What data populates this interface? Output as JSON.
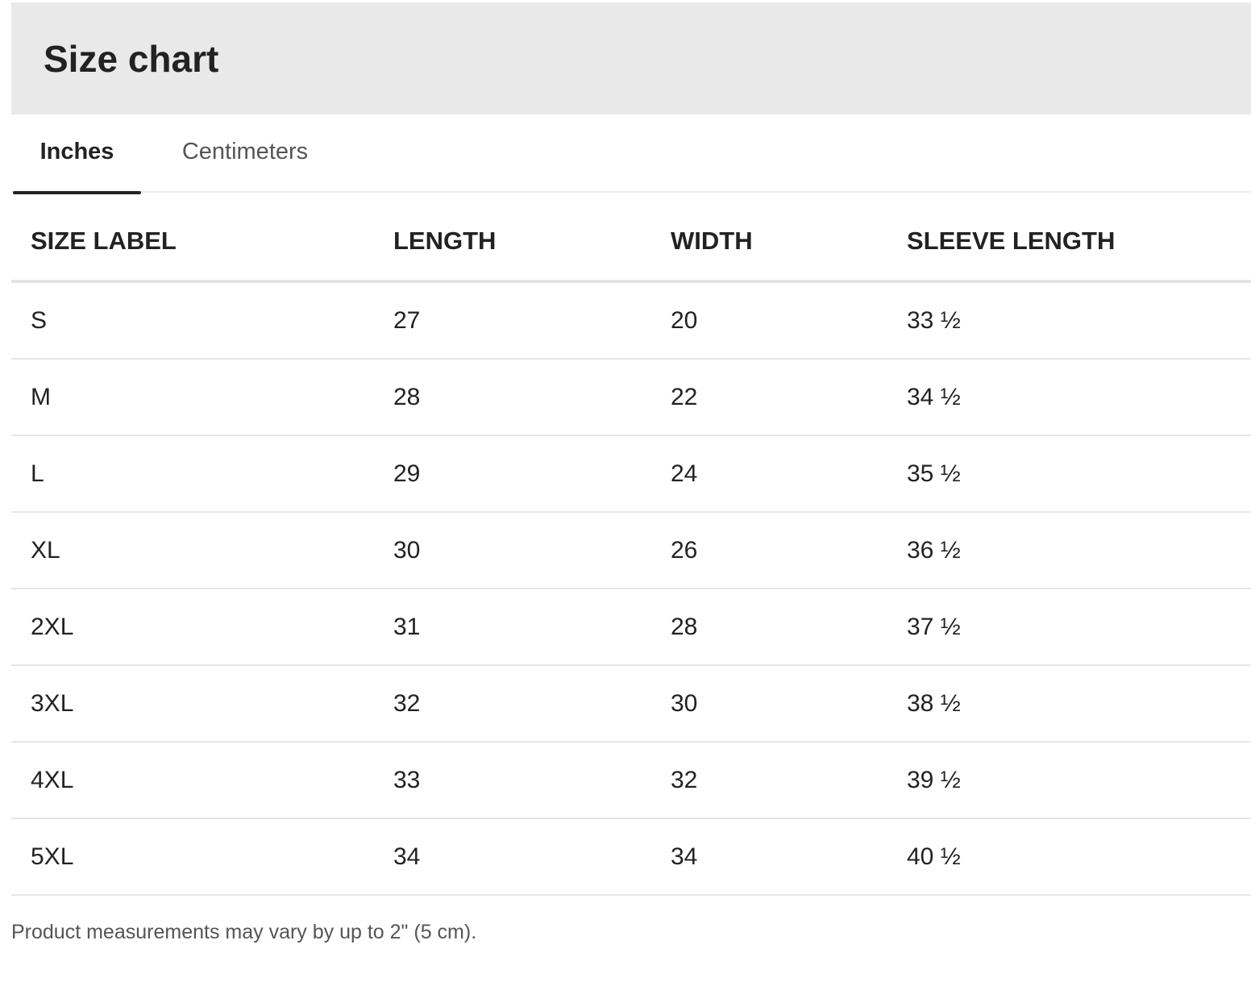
{
  "header": {
    "title": "Size chart"
  },
  "tabs": [
    {
      "label": "Inches",
      "active": true
    },
    {
      "label": "Centimeters",
      "active": false
    }
  ],
  "table": {
    "columns": [
      "SIZE LABEL",
      "LENGTH",
      "WIDTH",
      "SLEEVE LENGTH"
    ],
    "rows": [
      [
        "S",
        "27",
        "20",
        "33 ½"
      ],
      [
        "M",
        "28",
        "22",
        "34 ½"
      ],
      [
        "L",
        "29",
        "24",
        "35 ½"
      ],
      [
        "XL",
        "30",
        "26",
        "36 ½"
      ],
      [
        "2XL",
        "31",
        "28",
        "37 ½"
      ],
      [
        "3XL",
        "32",
        "30",
        "38 ½"
      ],
      [
        "4XL",
        "33",
        "32",
        "39 ½"
      ],
      [
        "5XL",
        "34",
        "34",
        "40 ½"
      ]
    ]
  },
  "footer": {
    "note": "Product measurements may vary by up to 2\" (5 cm)."
  },
  "colors": {
    "header_bg": "#e9e9e9",
    "text": "#222222",
    "muted_text": "#555555",
    "divider": "#e6e6e6"
  }
}
